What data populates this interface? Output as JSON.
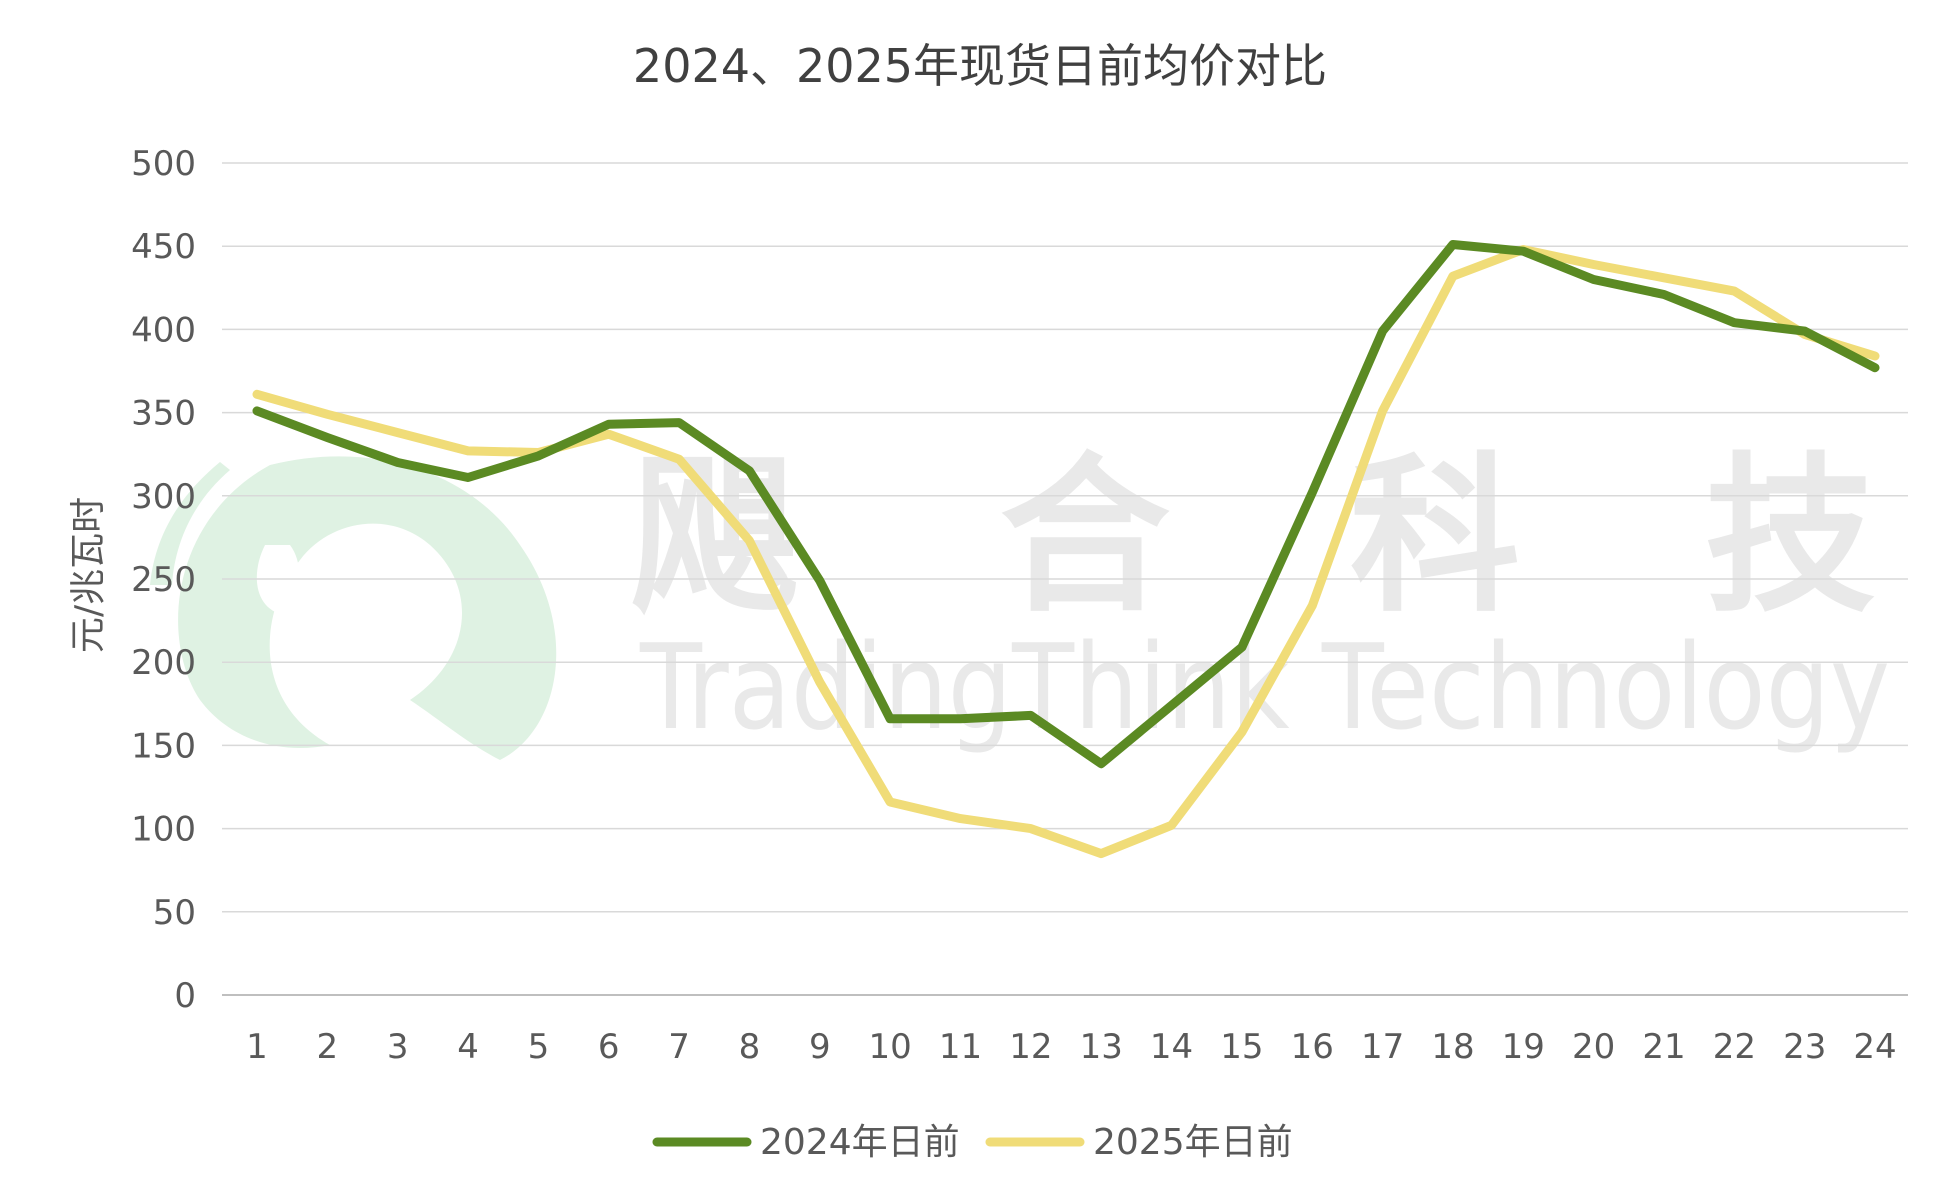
{
  "chart_data": {
    "type": "line",
    "title": "2024、2025年现货日前均价对比",
    "ylabel": "元/兆瓦时",
    "xlabel": "",
    "categories": [
      "1",
      "2",
      "3",
      "4",
      "5",
      "6",
      "7",
      "8",
      "9",
      "10",
      "11",
      "12",
      "13",
      "14",
      "15",
      "16",
      "17",
      "18",
      "19",
      "20",
      "21",
      "22",
      "23",
      "24"
    ],
    "ylim": [
      0,
      500
    ],
    "yticks": [
      0,
      50,
      100,
      150,
      200,
      250,
      300,
      350,
      400,
      450,
      500
    ],
    "grid": true,
    "legend_position": "bottom",
    "series": [
      {
        "name": "2024年日前",
        "color": "#5b8a23",
        "values": [
          351,
          335,
          320,
          311,
          324,
          343,
          344,
          315,
          249,
          166,
          166,
          168,
          139,
          174,
          209,
          302,
          399,
          451,
          447,
          430,
          421,
          404,
          399,
          377
        ]
      },
      {
        "name": "2025年日前",
        "color": "#f0dc78",
        "values": [
          361,
          349,
          338,
          327,
          326,
          337,
          322,
          273,
          188,
          116,
          106,
          100,
          85,
          102,
          158,
          234,
          351,
          432,
          448,
          439,
          431,
          423,
          397,
          384
        ]
      }
    ]
  },
  "watermark": {
    "cn_chars": [
      "飓",
      "合",
      "科",
      "技"
    ],
    "en_text": "TradingThink Technology",
    "logo_color": "#dff2e3"
  }
}
